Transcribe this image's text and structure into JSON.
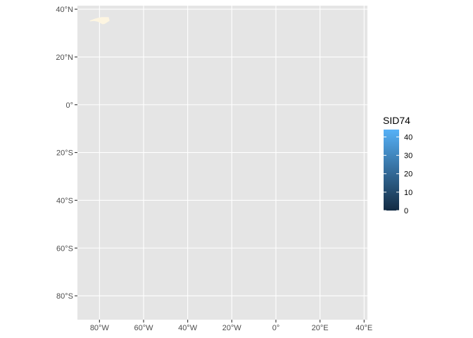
{
  "chart_data": {
    "type": "map",
    "projection": "equirectangular (lon/lat)",
    "x_axis": {
      "ticks": [
        {
          "value": -80,
          "label": "80°W"
        },
        {
          "value": -60,
          "label": "60°W"
        },
        {
          "value": -40,
          "label": "40°W"
        },
        {
          "value": -20,
          "label": "20°W"
        },
        {
          "value": 0,
          "label": "0°"
        },
        {
          "value": 20,
          "label": "20°E"
        },
        {
          "value": 40,
          "label": "40°E"
        }
      ],
      "range": [
        -90,
        41.5
      ]
    },
    "y_axis": {
      "ticks": [
        {
          "value": 40,
          "label": "40°N"
        },
        {
          "value": 20,
          "label": "20°N"
        },
        {
          "value": 0,
          "label": "0°"
        },
        {
          "value": -20,
          "label": "20°S"
        },
        {
          "value": -40,
          "label": "40°S"
        },
        {
          "value": -60,
          "label": "60°S"
        },
        {
          "value": -80,
          "label": "80°S"
        }
      ],
      "range": [
        -90,
        41.5
      ]
    },
    "feature_polygon": [
      [
        -84.3,
        35.2
      ],
      [
        -81.5,
        36.1
      ],
      [
        -79.0,
        36.6
      ],
      [
        -75.9,
        36.6
      ],
      [
        -75.5,
        35.2
      ],
      [
        -76.5,
        34.6
      ],
      [
        -77.8,
        33.9
      ],
      [
        -78.6,
        33.8
      ],
      [
        -80.6,
        34.8
      ],
      [
        -82.4,
        35.2
      ],
      [
        -84.3,
        35.0
      ]
    ],
    "feature_fill": "#fdf5e1",
    "panel_background": "#e5e5e5",
    "gridline_color": "#ffffff",
    "grid": true,
    "legend": {
      "title": "SID74",
      "placement": "right",
      "low_color": "#132b43",
      "high_color": "#56b1f7",
      "range": [
        0,
        44
      ],
      "ticks": [
        {
          "value": 0,
          "label": "0"
        },
        {
          "value": 10,
          "label": "10"
        },
        {
          "value": 20,
          "label": "20"
        },
        {
          "value": 30,
          "label": "30"
        },
        {
          "value": 40,
          "label": "40"
        }
      ]
    }
  }
}
